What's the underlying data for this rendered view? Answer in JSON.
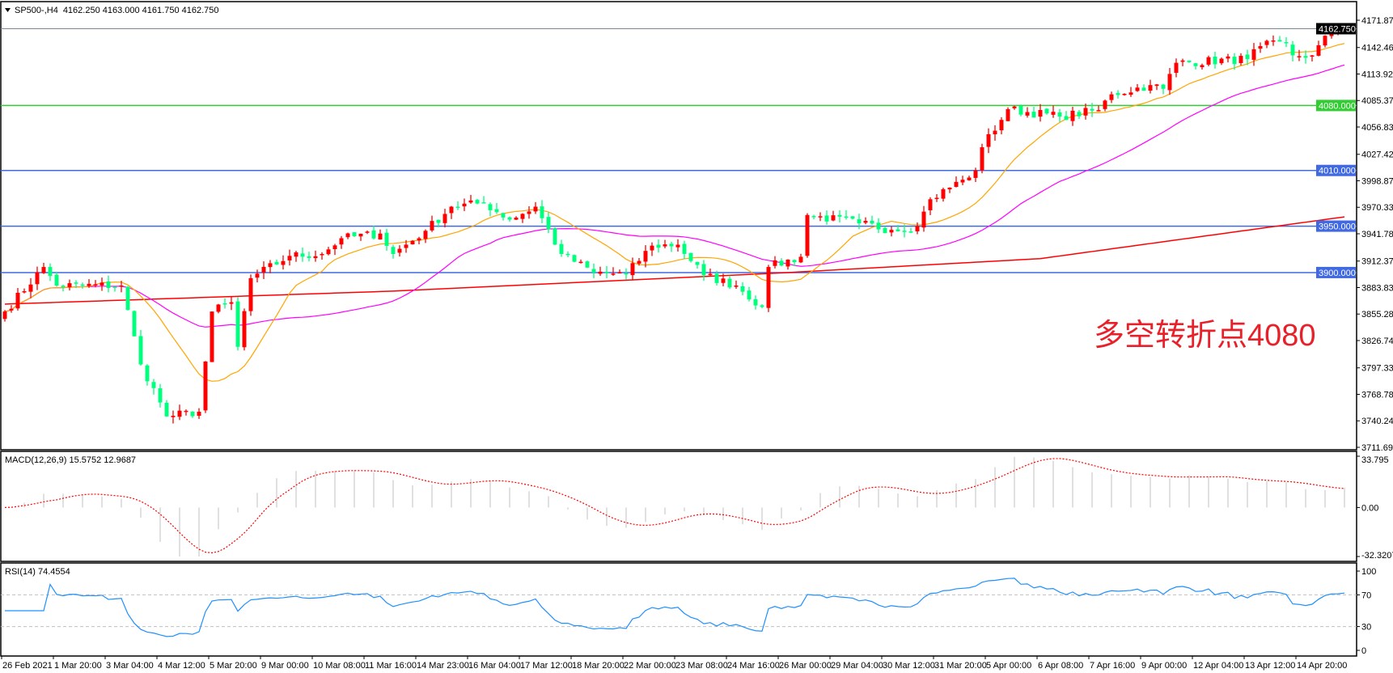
{
  "header": {
    "symbol": "SP500-,H4",
    "ohlc": "4162.250 4163.000 4161.750 4162.750"
  },
  "colors": {
    "bull_candle": "#ff0000",
    "bear_candle": "#00ff7f",
    "ma_short": "#ffa500",
    "ma_mid": "#ff00ff",
    "ma_long": "#ff0000",
    "level_green": "#32cd32",
    "level_blue": "#4169e1",
    "macd_hist": "#c0c0c0",
    "macd_signal": "#ff0000",
    "rsi_line": "#1e90ff",
    "annotation": "#e8202a"
  },
  "annotation": "多空转折点4080",
  "chart_data": [
    {
      "type": "candlestick",
      "pane": "price",
      "timeframe": "H4",
      "ylim": [
        3711.695,
        4171.875
      ],
      "y_ticks": [
        "4171.875",
        "4142.465",
        "4113.920",
        "4085.375",
        "4056.830",
        "4027.420",
        "3998.875",
        "3970.330",
        "3941.785",
        "3912.375",
        "3883.830",
        "3855.285",
        "3826.740",
        "3797.330",
        "3768.785",
        "3740.240",
        "3711.695"
      ],
      "x_ticks": [
        "26 Feb 2021",
        "1 Mar 20:00",
        "3 Mar 04:00",
        "4 Mar 12:00",
        "5 Mar 20:00",
        "9 Mar 00:00",
        "10 Mar 08:00",
        "11 Mar 16:00",
        "14 Mar 23:00",
        "16 Mar 04:00",
        "17 Mar 12:00",
        "18 Mar 20:00",
        "22 Mar 00:00",
        "23 Mar 08:00",
        "24 Mar 16:00",
        "26 Mar 00:00",
        "29 Mar 04:00",
        "30 Mar 12:00",
        "31 Mar 20:00",
        "5 Apr 00:00",
        "6 Apr 08:00",
        "7 Apr 16:00",
        "9 Apr 00:00",
        "12 Apr 04:00",
        "13 Apr 12:00",
        "14 Apr 20:00"
      ],
      "bar_count": 208,
      "close_path": [
        [
          0,
          3858
        ],
        [
          6,
          3906
        ],
        [
          8,
          3886
        ],
        [
          18,
          3886
        ],
        [
          21,
          3801
        ],
        [
          24,
          3760
        ],
        [
          25,
          3745
        ],
        [
          30,
          3750
        ],
        [
          32,
          3858
        ],
        [
          35,
          3868
        ],
        [
          36,
          3820
        ],
        [
          38,
          3894
        ],
        [
          44,
          3918
        ],
        [
          49,
          3920
        ],
        [
          52,
          3937
        ],
        [
          58,
          3942
        ],
        [
          60,
          3920
        ],
        [
          65,
          3945
        ],
        [
          69,
          3971
        ],
        [
          74,
          3975
        ],
        [
          78,
          3957
        ],
        [
          82,
          3971
        ],
        [
          86,
          3920
        ],
        [
          91,
          3900
        ],
        [
          96,
          3898
        ],
        [
          100,
          3929
        ],
        [
          104,
          3930
        ],
        [
          108,
          3897
        ],
        [
          113,
          3886
        ],
        [
          117,
          3863
        ],
        [
          118,
          3906
        ],
        [
          123,
          3917
        ],
        [
          124,
          3962
        ],
        [
          132,
          3953
        ],
        [
          137,
          3946
        ],
        [
          141,
          3950
        ],
        [
          143,
          3979
        ],
        [
          148,
          4000
        ],
        [
          150,
          4010
        ],
        [
          151,
          4035
        ],
        [
          155,
          4076
        ],
        [
          163,
          4068
        ],
        [
          169,
          4075
        ],
        [
          171,
          4092
        ],
        [
          177,
          4102
        ],
        [
          179,
          4098
        ],
        [
          181,
          4126
        ],
        [
          192,
          4130
        ],
        [
          194,
          4144
        ],
        [
          198,
          4147
        ],
        [
          199,
          4134
        ],
        [
          202,
          4134
        ],
        [
          205,
          4160
        ],
        [
          207,
          4162.75
        ]
      ],
      "ma_long_path": [
        [
          0,
          3866
        ],
        [
          60,
          3880
        ],
        [
          121,
          3900
        ],
        [
          160,
          3915
        ],
        [
          207,
          3960
        ]
      ],
      "levels": [
        {
          "price": "4080.000",
          "color": "green"
        },
        {
          "price": "4010.000",
          "color": "blue"
        },
        {
          "price": "3950.000",
          "color": "blue"
        },
        {
          "price": "3900.000",
          "color": "blue"
        }
      ],
      "last_price": "4162.750"
    },
    {
      "type": "bar+line",
      "pane": "macd",
      "label": "MACD(12,26,9) 15.5752 12.9687",
      "ylim": [
        -32.3207,
        33.795
      ],
      "y_ticks": [
        "33.795",
        "0.00",
        "-32.3207"
      ]
    },
    {
      "type": "line",
      "pane": "rsi",
      "label": "RSI(14) 74.4554",
      "ylim": [
        0,
        100
      ],
      "y_ticks": [
        "100",
        "70",
        "30",
        "0"
      ],
      "levels": [
        70,
        30
      ]
    }
  ]
}
